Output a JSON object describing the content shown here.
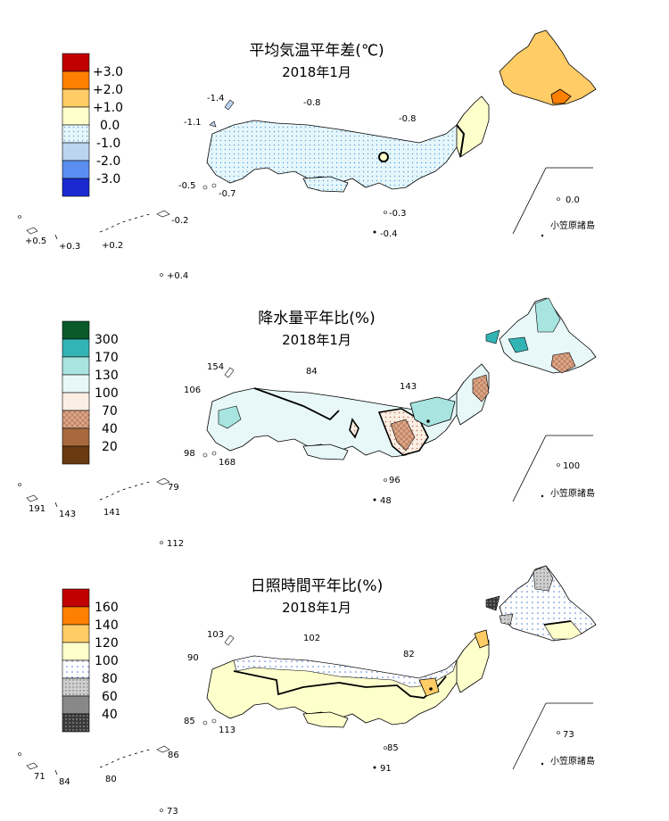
{
  "colors": {
    "temp": [
      "#c00000",
      "#ff8000",
      "#ffcc66",
      "#ffffcc",
      "#e6f7fb",
      "#bcd4f0",
      "#5a8ef0",
      "#1a2ad0"
    ],
    "precip": [
      "#0a5a2a",
      "#32b4b4",
      "#a8e4e0",
      "#e8f8f8",
      "#fbeee4",
      "#dca88a",
      "#a86a3c",
      "#6a3a10"
    ],
    "sun": [
      "#c00000",
      "#ff8000",
      "#ffcc66",
      "#ffffcc",
      "#ffffff",
      "#dcdcdc",
      "#888888",
      "#303030"
    ]
  },
  "panels": [
    {
      "key": "temp",
      "title": "平均気温平年差(℃)",
      "subtitle": "2018年1月",
      "legend_labels": [
        "+3.0",
        "+2.0",
        "+1.0",
        "0.0",
        "-1.0",
        "-2.0",
        "-3.0"
      ],
      "stations": [
        "-1.4",
        "-0.8",
        "-1.1",
        "-0.8",
        "-0.5",
        "-0.7",
        "-0.2",
        "+0.5",
        "+0.3",
        "+0.2",
        "-0.3",
        "-0.4",
        "+0.4",
        "0.0"
      ],
      "ogasawara": "小笠原諸島"
    },
    {
      "key": "precip",
      "title": "降水量平年比(%)",
      "subtitle": "2018年1月",
      "legend_labels": [
        "300",
        "170",
        "130",
        "100",
        "70",
        "40",
        "20"
      ],
      "stations": [
        "154",
        "84",
        "106",
        "143",
        "98",
        "168",
        "79",
        "191",
        "143",
        "141",
        "96",
        "48",
        "112",
        "100"
      ],
      "ogasawara": "小笠原諸島"
    },
    {
      "key": "sun",
      "title": "日照時間平年比(%)",
      "subtitle": "2018年1月",
      "legend_labels": [
        "160",
        "140",
        "120",
        "100",
        "80",
        "60",
        "40"
      ],
      "stations": [
        "103",
        "102",
        "90",
        "82",
        "85",
        "113",
        "86",
        "71",
        "84",
        "80",
        "85",
        "91",
        "73",
        "73"
      ],
      "ogasawara": "小笠原諸島"
    }
  ]
}
